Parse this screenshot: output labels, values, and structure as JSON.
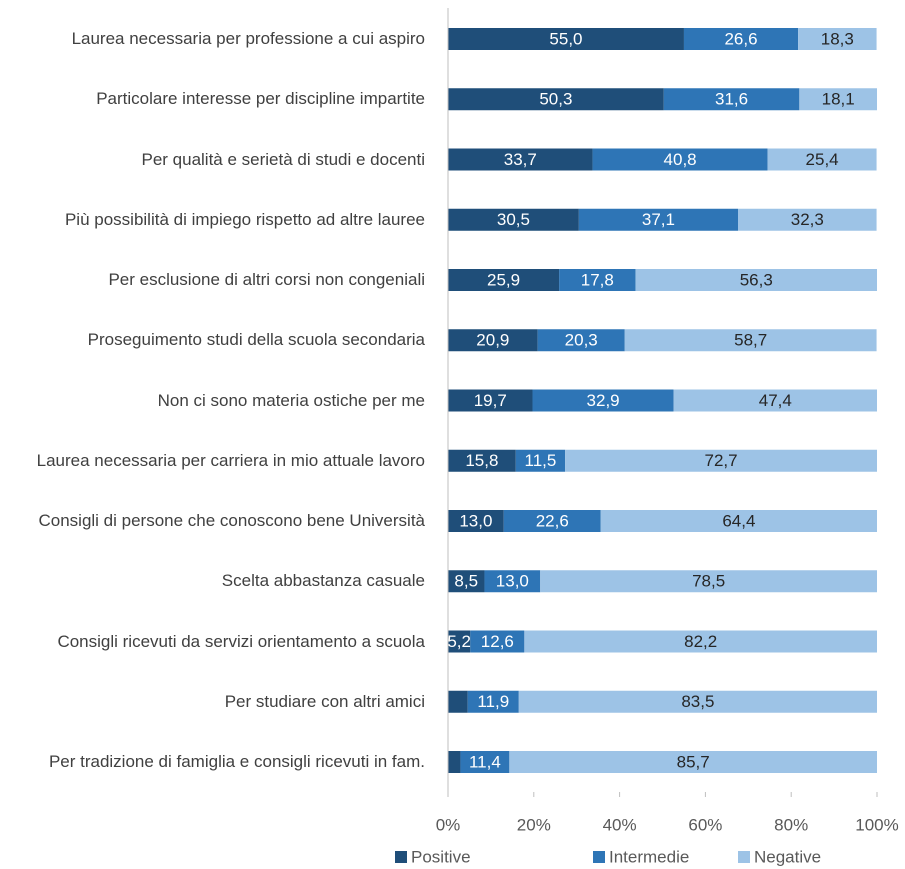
{
  "chart_data": {
    "type": "stacked_barh",
    "categories": [
      "Laurea necessaria per professione a cui aspiro",
      "Particolare interesse per discipline impartite",
      "Per qualità e serietà di studi e docenti",
      "Più possibilità di impiego rispetto ad altre lauree",
      "Per esclusione di altri corsi non congeniali",
      "Proseguimento studi della scuola secondaria",
      "Non ci sono materia ostiche per me",
      "Laurea necessaria per carriera in mio attuale lavoro",
      "Consigli di persone che conoscono bene Università",
      "Scelta abbastanza casuale",
      "Consigli ricevuti da servizi orientamento a scuola",
      "Per studiare con altri amici",
      "Per tradizione di famiglia e consigli ricevuti in fam."
    ],
    "series": [
      {
        "name": "Positive",
        "color": "#1f4e79",
        "values": [
          55.0,
          50.3,
          33.7,
          30.5,
          25.9,
          20.9,
          19.7,
          15.8,
          13.0,
          8.5,
          5.2,
          4.6,
          2.9
        ],
        "value_labels": [
          "55,0",
          "50,3",
          "33,7",
          "30,5",
          "25,9",
          "20,9",
          "19,7",
          "15,8",
          "13,0",
          "8,5",
          "5,2",
          null,
          null
        ]
      },
      {
        "name": "Intermedie",
        "color": "#2e75b6",
        "values": [
          26.6,
          31.6,
          40.8,
          37.1,
          17.8,
          20.3,
          32.9,
          11.5,
          22.6,
          13.0,
          12.6,
          11.9,
          11.4
        ],
        "value_labels": [
          "26,6",
          "31,6",
          "40,8",
          "37,1",
          "17,8",
          "20,3",
          "32,9",
          "11,5",
          "22,6",
          "13,0",
          "12,6",
          "11,9",
          "11,4"
        ]
      },
      {
        "name": "Negative",
        "color": "#9dc3e6",
        "values": [
          18.3,
          18.1,
          25.4,
          32.3,
          56.3,
          58.7,
          47.4,
          72.7,
          64.4,
          78.5,
          82.2,
          83.5,
          85.7
        ],
        "value_labels": [
          "18,3",
          "18,1",
          "25,4",
          "32,3",
          "56,3",
          "58,7",
          "47,4",
          "72,7",
          "64,4",
          "78,5",
          "82,2",
          "83,5",
          "85,7"
        ]
      }
    ],
    "xlim": [
      0,
      100
    ],
    "xticks": [
      {
        "value": 0,
        "label": "0%"
      },
      {
        "value": 20,
        "label": "20%"
      },
      {
        "value": 40,
        "label": "40%"
      },
      {
        "value": 60,
        "label": "60%"
      },
      {
        "value": 80,
        "label": "80%"
      },
      {
        "value": 100,
        "label": "100%"
      }
    ],
    "legend": "bottom"
  }
}
